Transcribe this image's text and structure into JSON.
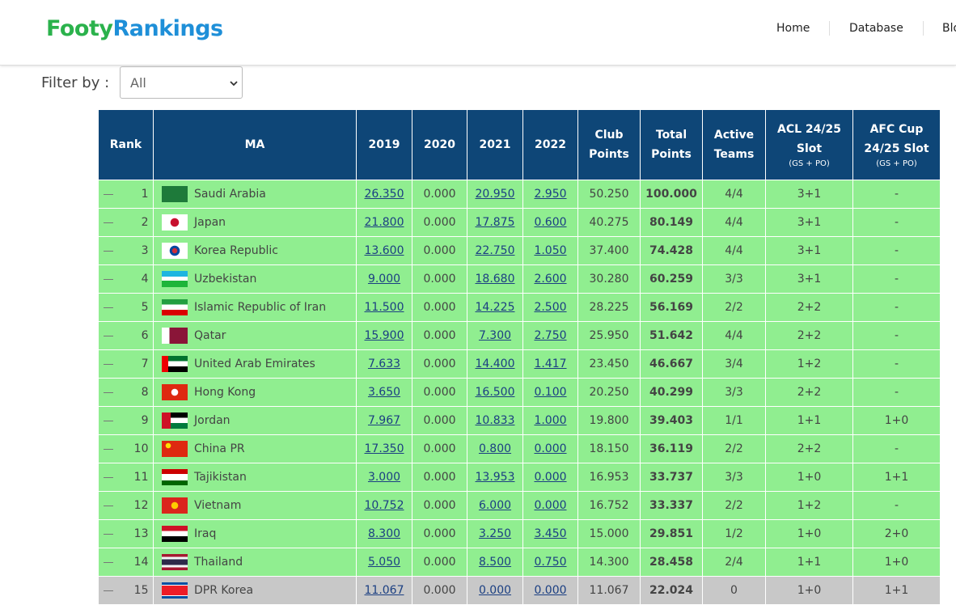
{
  "header": {
    "logo": [
      "Footy",
      "Rankings"
    ],
    "nav": [
      "Home",
      "Database",
      "Blo"
    ]
  },
  "filter": {
    "label": "Filter by :",
    "value": "All"
  },
  "table": {
    "columns": [
      {
        "label": "Rank"
      },
      {
        "label": "MA"
      },
      {
        "label": "2019"
      },
      {
        "label": "2020"
      },
      {
        "label": "2021"
      },
      {
        "label": "2022"
      },
      {
        "label": "Club Points"
      },
      {
        "label": "Total Points"
      },
      {
        "label": "Active Teams"
      },
      {
        "label": "ACL 24/25 Slot",
        "sub": "(GS + PO)"
      },
      {
        "label": "AFC Cup 24/25 Slot",
        "sub": "(GS + PO)"
      }
    ],
    "rows": [
      [
        "1",
        "Saudi Arabia",
        "26.350",
        "0.000",
        "20.950",
        "2.950",
        "50.250",
        "100.000",
        "4/4",
        "3+1",
        "-"
      ],
      [
        "2",
        "Japan",
        "21.800",
        "0.000",
        "17.875",
        "0.600",
        "40.275",
        "80.149",
        "4/4",
        "3+1",
        "-"
      ],
      [
        "3",
        "Korea Republic",
        "13.600",
        "0.000",
        "22.750",
        "1.050",
        "37.400",
        "74.428",
        "4/4",
        "3+1",
        "-"
      ],
      [
        "4",
        "Uzbekistan",
        "9.000",
        "0.000",
        "18.680",
        "2.600",
        "30.280",
        "60.259",
        "3/3",
        "3+1",
        "-"
      ],
      [
        "5",
        "Islamic Republic of Iran",
        "11.500",
        "0.000",
        "14.225",
        "2.500",
        "28.225",
        "56.169",
        "2/2",
        "2+2",
        "-"
      ],
      [
        "6",
        "Qatar",
        "15.900",
        "0.000",
        "7.300",
        "2.750",
        "25.950",
        "51.642",
        "4/4",
        "2+2",
        "-"
      ],
      [
        "7",
        "United Arab Emirates",
        "7.633",
        "0.000",
        "14.400",
        "1.417",
        "23.450",
        "46.667",
        "3/4",
        "1+2",
        "-"
      ],
      [
        "8",
        "Hong Kong",
        "3.650",
        "0.000",
        "16.500",
        "0.100",
        "20.250",
        "40.299",
        "3/3",
        "2+2",
        "-"
      ],
      [
        "9",
        "Jordan",
        "7.967",
        "0.000",
        "10.833",
        "1.000",
        "19.800",
        "39.403",
        "1/1",
        "1+1",
        "1+0"
      ],
      [
        "10",
        "China PR",
        "17.350",
        "0.000",
        "0.800",
        "0.000",
        "18.150",
        "36.119",
        "2/2",
        "2+2",
        "-"
      ],
      [
        "11",
        "Tajikistan",
        "3.000",
        "0.000",
        "13.953",
        "0.000",
        "16.953",
        "33.737",
        "3/3",
        "1+0",
        "1+1"
      ],
      [
        "12",
        "Vietnam",
        "10.752",
        "0.000",
        "6.000",
        "0.000",
        "16.752",
        "33.337",
        "2/2",
        "1+2",
        "-"
      ],
      [
        "13",
        "Iraq",
        "8.300",
        "0.000",
        "3.250",
        "3.450",
        "15.000",
        "29.851",
        "1/2",
        "1+0",
        "2+0"
      ],
      [
        "14",
        "Thailand",
        "5.050",
        "0.000",
        "8.500",
        "0.750",
        "14.300",
        "28.458",
        "2/4",
        "1+1",
        "1+0"
      ],
      [
        "15",
        "DPR Korea",
        "11.067",
        "0.000",
        "0.000",
        "0.000",
        "11.067",
        "22.024",
        "0",
        "1+0",
        "1+1"
      ]
    ]
  }
}
